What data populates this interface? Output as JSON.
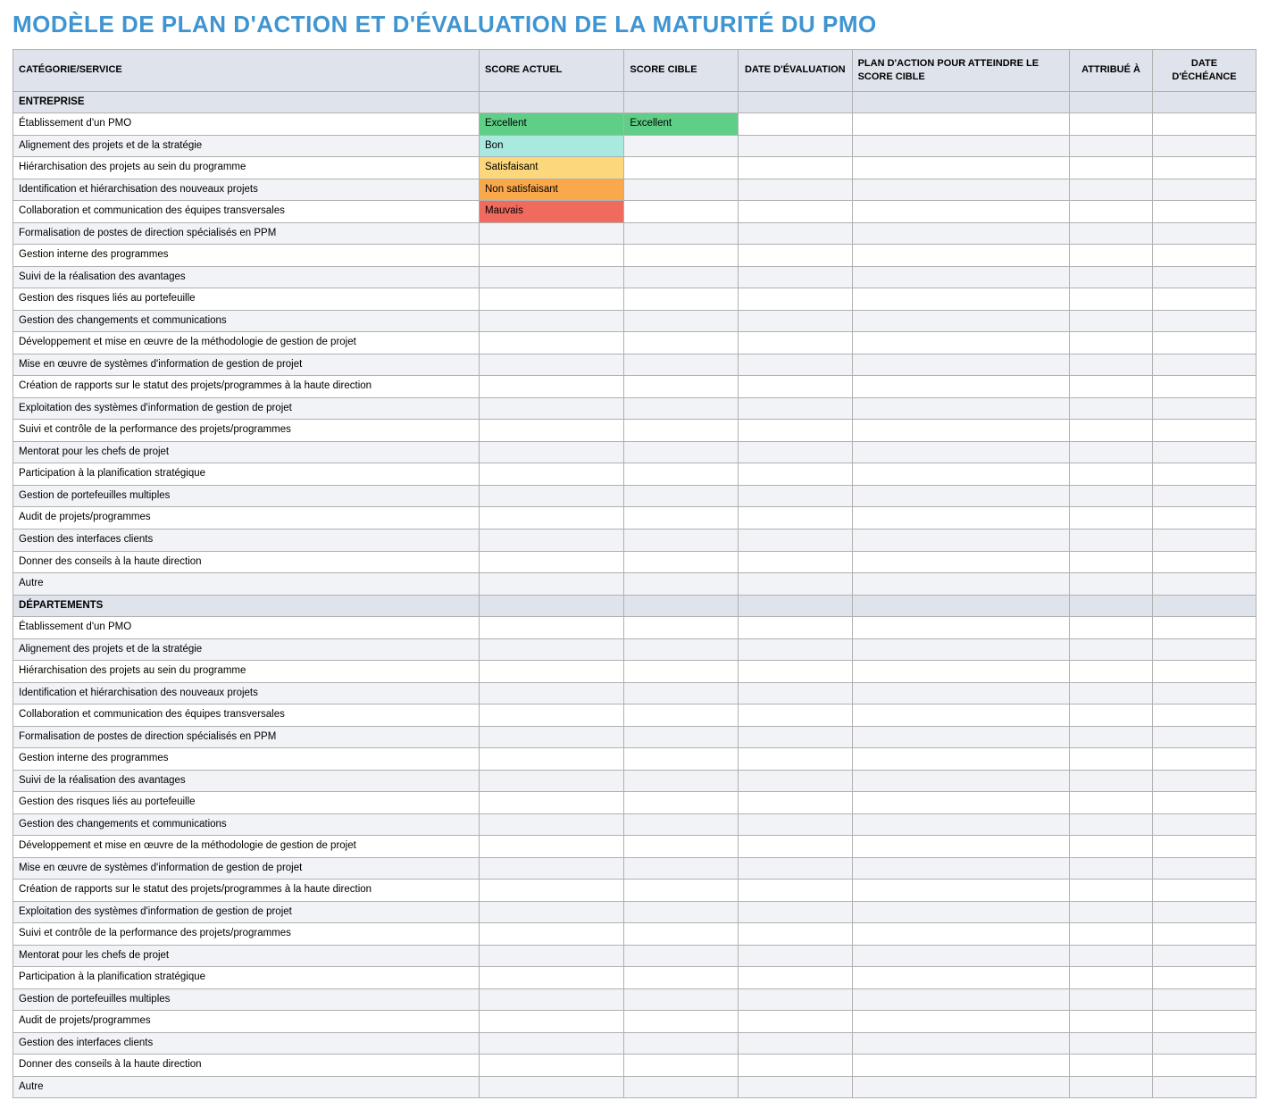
{
  "title": "MODÈLE DE PLAN D'ACTION ET D'ÉVALUATION DE LA MATURITÉ DU PMO",
  "colors": {
    "title": "#3f95d1",
    "header_bg": "#dfe4ec",
    "border": "#b0b0b0",
    "row_alt": "#f1f3f7",
    "score": {
      "Excellent": "#5fcf87",
      "Bon": "#a9e9df",
      "Satisfaisant": "#fcd77b",
      "Non satisfaisant": "#f9a94b",
      "Mauvais": "#f16a5e"
    }
  },
  "columns": [
    {
      "key": "category",
      "label": "CATÉGORIE/SERVICE",
      "align": "left"
    },
    {
      "key": "score_actual",
      "label": "SCORE ACTUEL",
      "align": "left"
    },
    {
      "key": "score_target",
      "label": "SCORE CIBLE",
      "align": "left"
    },
    {
      "key": "eval_date",
      "label": "DATE D'ÉVALUATION",
      "align": "center"
    },
    {
      "key": "action_plan",
      "label": "PLAN D'ACTION POUR ATTEINDRE LE SCORE CIBLE",
      "align": "left"
    },
    {
      "key": "assigned_to",
      "label": "ATTRIBUÉ À",
      "align": "center"
    },
    {
      "key": "due_date",
      "label": "DATE D'ÉCHÉANCE",
      "align": "center"
    }
  ],
  "sections": [
    {
      "title": "ENTREPRISE",
      "rows": [
        {
          "category": "Établissement d'un PMO",
          "score_actual": "Excellent",
          "score_target": "Excellent",
          "eval_date": "",
          "action_plan": "",
          "assigned_to": "",
          "due_date": ""
        },
        {
          "category": "Alignement des projets et de la stratégie",
          "score_actual": "Bon",
          "score_target": "",
          "eval_date": "",
          "action_plan": "",
          "assigned_to": "",
          "due_date": ""
        },
        {
          "category": "Hiérarchisation des projets au sein du programme",
          "score_actual": "Satisfaisant",
          "score_target": "",
          "eval_date": "",
          "action_plan": "",
          "assigned_to": "",
          "due_date": ""
        },
        {
          "category": "Identification et hiérarchisation des nouveaux projets",
          "score_actual": "Non satisfaisant",
          "score_target": "",
          "eval_date": "",
          "action_plan": "",
          "assigned_to": "",
          "due_date": ""
        },
        {
          "category": "Collaboration et communication des équipes transversales",
          "score_actual": "Mauvais",
          "score_target": "",
          "eval_date": "",
          "action_plan": "",
          "assigned_to": "",
          "due_date": ""
        },
        {
          "category": "Formalisation de postes de direction spécialisés en PPM",
          "score_actual": "",
          "score_target": "",
          "eval_date": "",
          "action_plan": "",
          "assigned_to": "",
          "due_date": ""
        },
        {
          "category": "Gestion interne des programmes",
          "score_actual": "",
          "score_target": "",
          "eval_date": "",
          "action_plan": "",
          "assigned_to": "",
          "due_date": ""
        },
        {
          "category": "Suivi de la réalisation des avantages",
          "score_actual": "",
          "score_target": "",
          "eval_date": "",
          "action_plan": "",
          "assigned_to": "",
          "due_date": ""
        },
        {
          "category": "Gestion des risques liés au portefeuille",
          "score_actual": "",
          "score_target": "",
          "eval_date": "",
          "action_plan": "",
          "assigned_to": "",
          "due_date": ""
        },
        {
          "category": "Gestion des changements et communications",
          "score_actual": "",
          "score_target": "",
          "eval_date": "",
          "action_plan": "",
          "assigned_to": "",
          "due_date": ""
        },
        {
          "category": "Développement et mise en œuvre de la méthodologie de gestion de projet",
          "score_actual": "",
          "score_target": "",
          "eval_date": "",
          "action_plan": "",
          "assigned_to": "",
          "due_date": ""
        },
        {
          "category": "Mise en œuvre de systèmes d'information de gestion de projet",
          "score_actual": "",
          "score_target": "",
          "eval_date": "",
          "action_plan": "",
          "assigned_to": "",
          "due_date": ""
        },
        {
          "category": "Création de rapports sur le statut des projets/programmes à la haute direction",
          "score_actual": "",
          "score_target": "",
          "eval_date": "",
          "action_plan": "",
          "assigned_to": "",
          "due_date": ""
        },
        {
          "category": "Exploitation des systèmes d'information de gestion de projet",
          "score_actual": "",
          "score_target": "",
          "eval_date": "",
          "action_plan": "",
          "assigned_to": "",
          "due_date": ""
        },
        {
          "category": "Suivi et contrôle de la performance des projets/programmes",
          "score_actual": "",
          "score_target": "",
          "eval_date": "",
          "action_plan": "",
          "assigned_to": "",
          "due_date": ""
        },
        {
          "category": "Mentorat pour les chefs de projet",
          "score_actual": "",
          "score_target": "",
          "eval_date": "",
          "action_plan": "",
          "assigned_to": "",
          "due_date": ""
        },
        {
          "category": "Participation à la planification stratégique",
          "score_actual": "",
          "score_target": "",
          "eval_date": "",
          "action_plan": "",
          "assigned_to": "",
          "due_date": ""
        },
        {
          "category": "Gestion de portefeuilles multiples",
          "score_actual": "",
          "score_target": "",
          "eval_date": "",
          "action_plan": "",
          "assigned_to": "",
          "due_date": ""
        },
        {
          "category": "Audit de projets/programmes",
          "score_actual": "",
          "score_target": "",
          "eval_date": "",
          "action_plan": "",
          "assigned_to": "",
          "due_date": ""
        },
        {
          "category": "Gestion des interfaces clients",
          "score_actual": "",
          "score_target": "",
          "eval_date": "",
          "action_plan": "",
          "assigned_to": "",
          "due_date": ""
        },
        {
          "category": "Donner des conseils à la haute direction",
          "score_actual": "",
          "score_target": "",
          "eval_date": "",
          "action_plan": "",
          "assigned_to": "",
          "due_date": ""
        },
        {
          "category": "Autre",
          "score_actual": "",
          "score_target": "",
          "eval_date": "",
          "action_plan": "",
          "assigned_to": "",
          "due_date": ""
        }
      ]
    },
    {
      "title": "DÉPARTEMENTS",
      "rows": [
        {
          "category": "Établissement d'un PMO",
          "score_actual": "",
          "score_target": "",
          "eval_date": "",
          "action_plan": "",
          "assigned_to": "",
          "due_date": ""
        },
        {
          "category": "Alignement des projets et de la stratégie",
          "score_actual": "",
          "score_target": "",
          "eval_date": "",
          "action_plan": "",
          "assigned_to": "",
          "due_date": ""
        },
        {
          "category": "Hiérarchisation des projets au sein du programme",
          "score_actual": "",
          "score_target": "",
          "eval_date": "",
          "action_plan": "",
          "assigned_to": "",
          "due_date": ""
        },
        {
          "category": "Identification et hiérarchisation des nouveaux projets",
          "score_actual": "",
          "score_target": "",
          "eval_date": "",
          "action_plan": "",
          "assigned_to": "",
          "due_date": ""
        },
        {
          "category": "Collaboration et communication des équipes transversales",
          "score_actual": "",
          "score_target": "",
          "eval_date": "",
          "action_plan": "",
          "assigned_to": "",
          "due_date": ""
        },
        {
          "category": "Formalisation de postes de direction spécialisés en PPM",
          "score_actual": "",
          "score_target": "",
          "eval_date": "",
          "action_plan": "",
          "assigned_to": "",
          "due_date": ""
        },
        {
          "category": "Gestion interne des programmes",
          "score_actual": "",
          "score_target": "",
          "eval_date": "",
          "action_plan": "",
          "assigned_to": "",
          "due_date": ""
        },
        {
          "category": "Suivi de la réalisation des avantages",
          "score_actual": "",
          "score_target": "",
          "eval_date": "",
          "action_plan": "",
          "assigned_to": "",
          "due_date": ""
        },
        {
          "category": "Gestion des risques liés au portefeuille",
          "score_actual": "",
          "score_target": "",
          "eval_date": "",
          "action_plan": "",
          "assigned_to": "",
          "due_date": ""
        },
        {
          "category": "Gestion des changements et communications",
          "score_actual": "",
          "score_target": "",
          "eval_date": "",
          "action_plan": "",
          "assigned_to": "",
          "due_date": ""
        },
        {
          "category": "Développement et mise en œuvre de la méthodologie de gestion de projet",
          "score_actual": "",
          "score_target": "",
          "eval_date": "",
          "action_plan": "",
          "assigned_to": "",
          "due_date": ""
        },
        {
          "category": "Mise en œuvre de systèmes d'information de gestion de projet",
          "score_actual": "",
          "score_target": "",
          "eval_date": "",
          "action_plan": "",
          "assigned_to": "",
          "due_date": ""
        },
        {
          "category": "Création de rapports sur le statut des projets/programmes à la haute direction",
          "score_actual": "",
          "score_target": "",
          "eval_date": "",
          "action_plan": "",
          "assigned_to": "",
          "due_date": ""
        },
        {
          "category": "Exploitation des systèmes d'information de gestion de projet",
          "score_actual": "",
          "score_target": "",
          "eval_date": "",
          "action_plan": "",
          "assigned_to": "",
          "due_date": ""
        },
        {
          "category": "Suivi et contrôle de la performance des projets/programmes",
          "score_actual": "",
          "score_target": "",
          "eval_date": "",
          "action_plan": "",
          "assigned_to": "",
          "due_date": ""
        },
        {
          "category": "Mentorat pour les chefs de projet",
          "score_actual": "",
          "score_target": "",
          "eval_date": "",
          "action_plan": "",
          "assigned_to": "",
          "due_date": ""
        },
        {
          "category": "Participation à la planification stratégique",
          "score_actual": "",
          "score_target": "",
          "eval_date": "",
          "action_plan": "",
          "assigned_to": "",
          "due_date": ""
        },
        {
          "category": "Gestion de portefeuilles multiples",
          "score_actual": "",
          "score_target": "",
          "eval_date": "",
          "action_plan": "",
          "assigned_to": "",
          "due_date": ""
        },
        {
          "category": "Audit de projets/programmes",
          "score_actual": "",
          "score_target": "",
          "eval_date": "",
          "action_plan": "",
          "assigned_to": "",
          "due_date": ""
        },
        {
          "category": "Gestion des interfaces clients",
          "score_actual": "",
          "score_target": "",
          "eval_date": "",
          "action_plan": "",
          "assigned_to": "",
          "due_date": ""
        },
        {
          "category": "Donner des conseils à la haute direction",
          "score_actual": "",
          "score_target": "",
          "eval_date": "",
          "action_plan": "",
          "assigned_to": "",
          "due_date": ""
        },
        {
          "category": "Autre",
          "score_actual": "",
          "score_target": "",
          "eval_date": "",
          "action_plan": "",
          "assigned_to": "",
          "due_date": ""
        }
      ]
    }
  ]
}
